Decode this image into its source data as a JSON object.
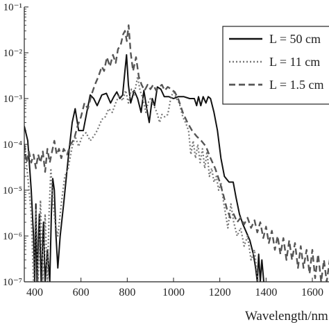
{
  "chart_data": {
    "type": "line",
    "xlabel": "Wavelength/nm",
    "ylabel": "",
    "title": "",
    "xlim": [
      355,
      1705
    ],
    "ylog": true,
    "ylim": [
      1e-07,
      0.1
    ],
    "x_ticks": [
      400,
      600,
      800,
      1000,
      1200,
      1400,
      1600
    ],
    "y_ticks": [
      {
        "value": 1e-07,
        "label": "10⁻⁷"
      },
      {
        "value": 1e-06,
        "label": "10⁻⁶"
      },
      {
        "value": 1e-05,
        "label": "10⁻⁵"
      },
      {
        "value": 0.0001,
        "label": "10⁻⁴"
      },
      {
        "value": 0.001,
        "label": "10⁻³"
      },
      {
        "value": 0.01,
        "label": "10⁻²"
      },
      {
        "value": 0.1,
        "label": "10⁻¹"
      }
    ],
    "grid": false,
    "legend_position": "top-right",
    "series": [
      {
        "name": "L = 50 cm",
        "style": "solid",
        "color": "#111111",
        "points": [
          [
            355,
            0.00025
          ],
          [
            370,
            0.00012
          ],
          [
            385,
            1e-05
          ],
          [
            395,
            1e-06
          ],
          [
            400,
            1e-07
          ],
          [
            405,
            5e-06
          ],
          [
            410,
            1e-07
          ],
          [
            420,
            3e-06
          ],
          [
            428,
            1e-07
          ],
          [
            438,
            2e-06
          ],
          [
            445,
            1e-07
          ],
          [
            455,
            5e-07
          ],
          [
            465,
            1e-07
          ],
          [
            472,
            3e-06
          ],
          [
            478,
            1.8e-05
          ],
          [
            485,
            1e-05
          ],
          [
            492,
            1e-06
          ],
          [
            500,
            2e-07
          ],
          [
            510,
            1e-06
          ],
          [
            525,
            5e-06
          ],
          [
            545,
            5e-05
          ],
          [
            562,
            0.0003
          ],
          [
            575,
            0.0006
          ],
          [
            590,
            0.0002
          ],
          [
            610,
            0.0002
          ],
          [
            625,
            0.0005
          ],
          [
            640,
            0.0012
          ],
          [
            655,
            0.001
          ],
          [
            670,
            0.0007
          ],
          [
            690,
            0.0012
          ],
          [
            710,
            0.0013
          ],
          [
            728,
            0.0008
          ],
          [
            742,
            0.0011
          ],
          [
            755,
            0.0014
          ],
          [
            768,
            0.001
          ],
          [
            780,
            0.0012
          ],
          [
            790,
            0.004
          ],
          [
            797,
            0.009
          ],
          [
            805,
            0.002
          ],
          [
            815,
            0.0008
          ],
          [
            830,
            0.0015
          ],
          [
            845,
            0.001
          ],
          [
            860,
            0.0005
          ],
          [
            872,
            0.0015
          ],
          [
            882,
            0.0007
          ],
          [
            895,
            0.0003
          ],
          [
            908,
            0.001
          ],
          [
            918,
            0.0007
          ],
          [
            930,
            0.0018
          ],
          [
            945,
            0.0016
          ],
          [
            960,
            0.0011
          ],
          [
            980,
            0.0011
          ],
          [
            1000,
            0.001
          ],
          [
            1020,
            0.0011
          ],
          [
            1045,
            0.0011
          ],
          [
            1070,
            0.001
          ],
          [
            1090,
            0.001
          ],
          [
            1100,
            0.0007
          ],
          [
            1108,
            0.0011
          ],
          [
            1118,
            0.0007
          ],
          [
            1128,
            0.0011
          ],
          [
            1140,
            0.0008
          ],
          [
            1150,
            0.0011
          ],
          [
            1160,
            0.001
          ],
          [
            1175,
            0.0005
          ],
          [
            1190,
            0.0002
          ],
          [
            1205,
            5e-05
          ],
          [
            1220,
            2e-05
          ],
          [
            1240,
            1.5e-05
          ],
          [
            1258,
            1.5e-05
          ],
          [
            1270,
            7e-06
          ],
          [
            1285,
            3e-06
          ],
          [
            1300,
            1.8e-06
          ],
          [
            1315,
            1.2e-06
          ],
          [
            1330,
            8e-07
          ],
          [
            1345,
            4e-07
          ],
          [
            1355,
            2e-07
          ],
          [
            1362,
            1e-07
          ],
          [
            1368,
            4e-07
          ],
          [
            1375,
            1e-07
          ],
          [
            1382,
            3e-07
          ],
          [
            1390,
            1e-07
          ]
        ]
      },
      {
        "name": "L = 11 cm",
        "style": "dotted",
        "color": "#777777",
        "points": [
          [
            355,
            0.0001
          ],
          [
            370,
            2e-05
          ],
          [
            385,
            3e-06
          ],
          [
            395,
            1e-07
          ],
          [
            405,
            4e-06
          ],
          [
            415,
            1e-07
          ],
          [
            425,
            6e-06
          ],
          [
            435,
            1e-07
          ],
          [
            445,
            3e-06
          ],
          [
            455,
            1e-07
          ],
          [
            462,
            3e-06
          ],
          [
            470,
            3e-05
          ],
          [
            478,
            6e-06
          ],
          [
            488,
            2e-06
          ],
          [
            500,
            1e-06
          ],
          [
            515,
            5e-06
          ],
          [
            530,
            2e-05
          ],
          [
            545,
            3e-05
          ],
          [
            560,
            8e-05
          ],
          [
            575,
            0.00015
          ],
          [
            590,
            9e-05
          ],
          [
            605,
            0.00015
          ],
          [
            622,
            0.00018
          ],
          [
            640,
            0.00012
          ],
          [
            655,
            0.00015
          ],
          [
            670,
            0.0002
          ],
          [
            690,
            0.00035
          ],
          [
            705,
            0.0004
          ],
          [
            720,
            0.0006
          ],
          [
            735,
            0.0005
          ],
          [
            750,
            0.0008
          ],
          [
            765,
            0.0012
          ],
          [
            780,
            0.0009
          ],
          [
            793,
            0.0015
          ],
          [
            805,
            0.0008
          ],
          [
            818,
            0.0016
          ],
          [
            830,
            0.0012
          ],
          [
            845,
            0.003
          ],
          [
            855,
            0.0015
          ],
          [
            868,
            0.001
          ],
          [
            880,
            0.0005
          ],
          [
            890,
            0.0008
          ],
          [
            900,
            0.001
          ],
          [
            915,
            0.0007
          ],
          [
            928,
            0.0005
          ],
          [
            940,
            0.0003
          ],
          [
            950,
            0.00045
          ],
          [
            962,
            0.0004
          ],
          [
            975,
            0.00045
          ],
          [
            988,
            0.001
          ],
          [
            1000,
            0.0015
          ],
          [
            1012,
            0.001
          ],
          [
            1025,
            0.0008
          ],
          [
            1040,
            0.0004
          ],
          [
            1052,
            0.0003
          ],
          [
            1065,
            0.0002
          ],
          [
            1075,
            6e-05
          ],
          [
            1085,
            0.00012
          ],
          [
            1095,
            5e-05
          ],
          [
            1105,
            0.0001
          ],
          [
            1115,
            4e-05
          ],
          [
            1125,
            8e-05
          ],
          [
            1135,
            3e-05
          ],
          [
            1145,
            7e-05
          ],
          [
            1155,
            2e-05
          ],
          [
            1165,
            3e-05
          ],
          [
            1175,
            1.5e-05
          ],
          [
            1185,
            2e-05
          ],
          [
            1195,
            1e-05
          ],
          [
            1205,
            1.5e-05
          ],
          [
            1215,
            6e-06
          ],
          [
            1225,
            3e-06
          ],
          [
            1235,
            1.5e-06
          ],
          [
            1248,
            5e-06
          ],
          [
            1260,
            2e-06
          ],
          [
            1275,
            1e-06
          ],
          [
            1290,
            1.5e-06
          ],
          [
            1305,
            6e-07
          ],
          [
            1320,
            1e-06
          ],
          [
            1335,
            3e-07
          ],
          [
            1350,
            5e-07
          ],
          [
            1365,
            1e-07
          ],
          [
            1380,
            1e-07
          ]
        ]
      },
      {
        "name": "L = 1.5 cm",
        "style": "dashed",
        "color": "#555555",
        "points": [
          [
            355,
            0.0001
          ],
          [
            365,
            4e-05
          ],
          [
            375,
            7e-05
          ],
          [
            385,
            4e-05
          ],
          [
            395,
            6e-05
          ],
          [
            405,
            3e-05
          ],
          [
            415,
            6e-05
          ],
          [
            425,
            4e-05
          ],
          [
            435,
            7e-05
          ],
          [
            445,
            2.5e-05
          ],
          [
            455,
            8e-05
          ],
          [
            465,
            4e-05
          ],
          [
            475,
            7e-05
          ],
          [
            485,
            0.00012
          ],
          [
            495,
            6e-05
          ],
          [
            505,
            8e-05
          ],
          [
            515,
            5e-05
          ],
          [
            525,
            8e-05
          ],
          [
            540,
            6e-05
          ],
          [
            555,
            0.0001
          ],
          [
            570,
            0.00013
          ],
          [
            585,
            0.00025
          ],
          [
            600,
            0.0004
          ],
          [
            615,
            0.0008
          ],
          [
            630,
            0.0006
          ],
          [
            645,
            0.0012
          ],
          [
            660,
            0.002
          ],
          [
            675,
            0.003
          ],
          [
            690,
            0.005
          ],
          [
            700,
            0.004
          ],
          [
            712,
            0.008
          ],
          [
            725,
            0.005
          ],
          [
            738,
            0.009
          ],
          [
            750,
            0.006
          ],
          [
            760,
            0.012
          ],
          [
            772,
            0.015
          ],
          [
            782,
            0.025
          ],
          [
            790,
            0.03
          ],
          [
            798,
            0.018
          ],
          [
            806,
            0.04
          ],
          [
            815,
            0.01
          ],
          [
            825,
            0.004
          ],
          [
            838,
            0.008
          ],
          [
            850,
            0.003
          ],
          [
            862,
            0.002
          ],
          [
            875,
            0.0015
          ],
          [
            888,
            0.002
          ],
          [
            900,
            0.0016
          ],
          [
            912,
            0.002
          ],
          [
            925,
            0.0015
          ],
          [
            938,
            0.0018
          ],
          [
            950,
            0.002
          ],
          [
            962,
            0.0015
          ],
          [
            975,
            0.0018
          ],
          [
            990,
            0.0016
          ],
          [
            1005,
            0.0014
          ],
          [
            1020,
            0.001
          ],
          [
            1040,
            0.0005
          ],
          [
            1060,
            0.0003
          ],
          [
            1080,
            0.0002
          ],
          [
            1100,
            0.00015
          ],
          [
            1120,
            0.00012
          ],
          [
            1140,
            9e-05
          ],
          [
            1160,
            5e-05
          ],
          [
            1180,
            3e-05
          ],
          [
            1200,
            1.5e-05
          ],
          [
            1215,
            8e-06
          ],
          [
            1230,
            4e-06
          ],
          [
            1245,
            2.5e-06
          ],
          [
            1260,
            3e-06
          ],
          [
            1275,
            2e-06
          ],
          [
            1290,
            2.5e-06
          ],
          [
            1305,
            1.8e-06
          ],
          [
            1320,
            2.5e-06
          ],
          [
            1335,
            1.5e-06
          ],
          [
            1350,
            2.2e-06
          ],
          [
            1362,
            1.2e-06
          ],
          [
            1375,
            2e-06
          ],
          [
            1388,
            9e-07
          ],
          [
            1400,
            1.6e-06
          ],
          [
            1412,
            7e-07
          ],
          [
            1425,
            1.3e-06
          ],
          [
            1438,
            5e-07
          ],
          [
            1450,
            1e-06
          ],
          [
            1462,
            4e-07
          ],
          [
            1475,
            9e-07
          ],
          [
            1488,
            3e-07
          ],
          [
            1500,
            8e-07
          ],
          [
            1512,
            3e-07
          ],
          [
            1525,
            7e-07
          ],
          [
            1538,
            2e-07
          ],
          [
            1550,
            6e-07
          ],
          [
            1562,
            2e-07
          ],
          [
            1575,
            5e-07
          ],
          [
            1588,
            1.5e-07
          ],
          [
            1600,
            5e-07
          ],
          [
            1612,
            1.2e-07
          ],
          [
            1625,
            4e-07
          ],
          [
            1638,
            1e-07
          ],
          [
            1650,
            3e-07
          ],
          [
            1662,
            1e-07
          ],
          [
            1675,
            3e-07
          ],
          [
            1690,
            1.2e-07
          ],
          [
            1705,
            2.5e-07
          ]
        ]
      }
    ]
  }
}
